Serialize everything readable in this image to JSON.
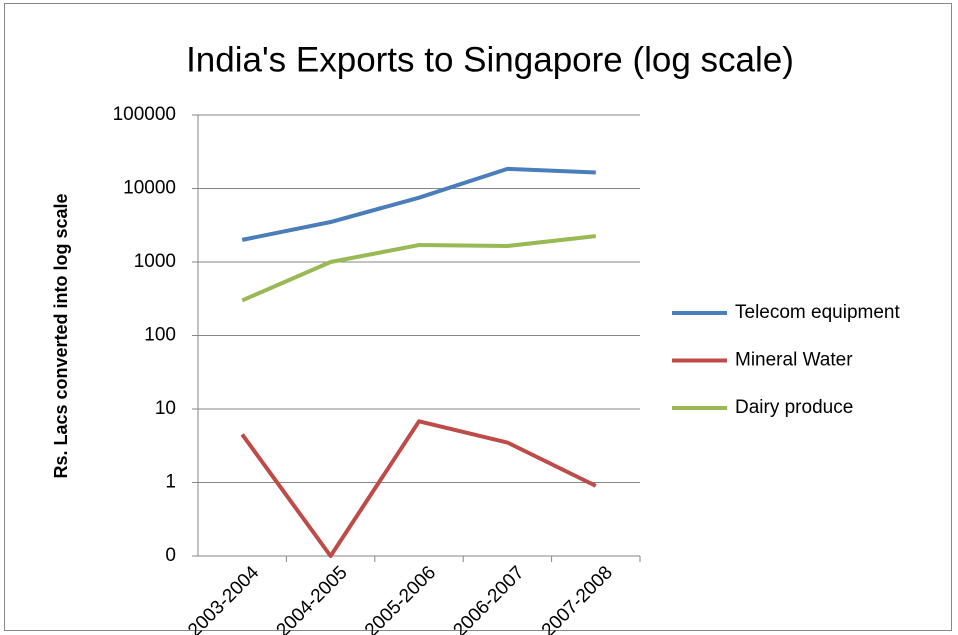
{
  "chart_data": {
    "type": "line",
    "title": "India's Exports to Singapore (log scale)",
    "y_label": "Rs. Lacs converted into log scale",
    "categories": [
      "2003-2004",
      "2004-2005",
      "2005-2006",
      "2006-2007",
      "2007-2008"
    ],
    "series": [
      {
        "name": "Telecom equipment",
        "color": "#4a7ebb",
        "values": [
          2000,
          3500,
          7500,
          18500,
          16500
        ]
      },
      {
        "name": "Mineral Water",
        "color": "#be4b48",
        "values": [
          4.5,
          0.1,
          6.8,
          3.5,
          0.9
        ]
      },
      {
        "name": "Dairy produce",
        "color": "#98b954",
        "values": [
          300,
          1000,
          1700,
          1650,
          2250
        ]
      }
    ],
    "log_scale": true,
    "ylim": [
      0.1,
      100000
    ],
    "yticks": [
      {
        "value": 0.1,
        "label": "0"
      },
      1,
      10,
      100,
      1000,
      10000,
      100000
    ],
    "grid": true,
    "legend": "right"
  }
}
